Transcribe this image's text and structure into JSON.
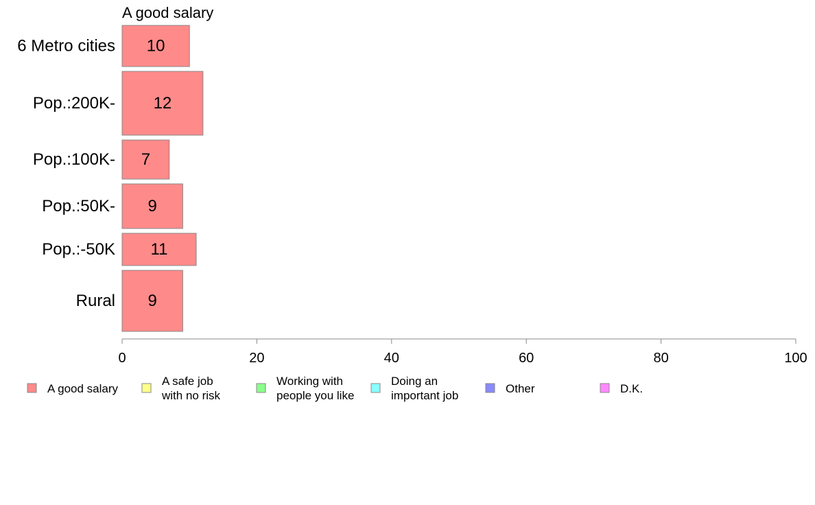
{
  "chart_data": {
    "type": "bar",
    "orientation": "horizontal",
    "title": "A good salary",
    "categories": [
      "6 Metro cities",
      "Pop.:200K-",
      "Pop.:100K-",
      "Pop.:50K-",
      "Pop.:-50K",
      "Rural"
    ],
    "values": [
      10,
      12,
      7,
      9,
      11,
      9
    ],
    "xlim": [
      0,
      100
    ],
    "xticks": [
      0,
      20,
      40,
      60,
      80,
      100
    ],
    "grid": false,
    "bar_color": "#ff8a8a",
    "legend_position": "bottom",
    "legend": [
      {
        "lines": [
          "A good salary"
        ],
        "color": "#ff8a8a"
      },
      {
        "lines": [
          "A safe job",
          "with no risk"
        ],
        "color": "#ffff8a"
      },
      {
        "lines": [
          "Working with",
          "people you like"
        ],
        "color": "#8aff8a"
      },
      {
        "lines": [
          "Doing an",
          "important job"
        ],
        "color": "#8affff"
      },
      {
        "lines": [
          "Other"
        ],
        "color": "#8a8aff"
      },
      {
        "lines": [
          "D.K."
        ],
        "color": "#ff8aff"
      }
    ]
  }
}
